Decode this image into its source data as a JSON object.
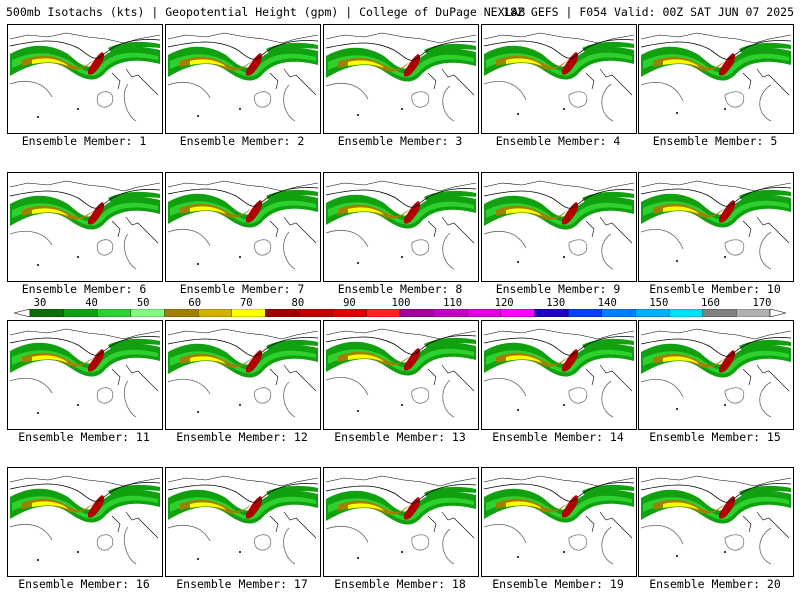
{
  "header": {
    "left": "500mb Isotachs (kts) | Geopotential Height (gpm) | College of DuPage NEXLAB",
    "right": "18Z GEFS | F054 Valid: 00Z SAT JUN 07 2025"
  },
  "members": [
    "Ensemble Member: 1",
    "Ensemble Member: 2",
    "Ensemble Member: 3",
    "Ensemble Member: 4",
    "Ensemble Member: 5",
    "Ensemble Member: 6",
    "Ensemble Member: 7",
    "Ensemble Member: 8",
    "Ensemble Member: 9",
    "Ensemble Member: 10",
    "Ensemble Member: 11",
    "Ensemble Member: 12",
    "Ensemble Member: 13",
    "Ensemble Member: 14",
    "Ensemble Member: 15",
    "Ensemble Member: 16",
    "Ensemble Member: 17",
    "Ensemble Member: 18",
    "Ensemble Member: 19",
    "Ensemble Member: 20"
  ],
  "colorbar": {
    "labels": [
      "30",
      "40",
      "50",
      "60",
      "70",
      "80",
      "90",
      "100",
      "110",
      "120",
      "130",
      "140",
      "150",
      "160",
      "170"
    ],
    "colors": [
      "#0a6e0a",
      "#10a010",
      "#2ed02e",
      "#80ff80",
      "#a08000",
      "#d0b000",
      "#ffff00",
      "#a00000",
      "#c00000",
      "#e00000",
      "#ff2020",
      "#a000a0",
      "#c000c0",
      "#e000e0",
      "#ff00ff",
      "#2000c0",
      "#0040ff",
      "#0080ff",
      "#00b0ff",
      "#00e0ff",
      "#808080",
      "#b0b0b0"
    ]
  }
}
